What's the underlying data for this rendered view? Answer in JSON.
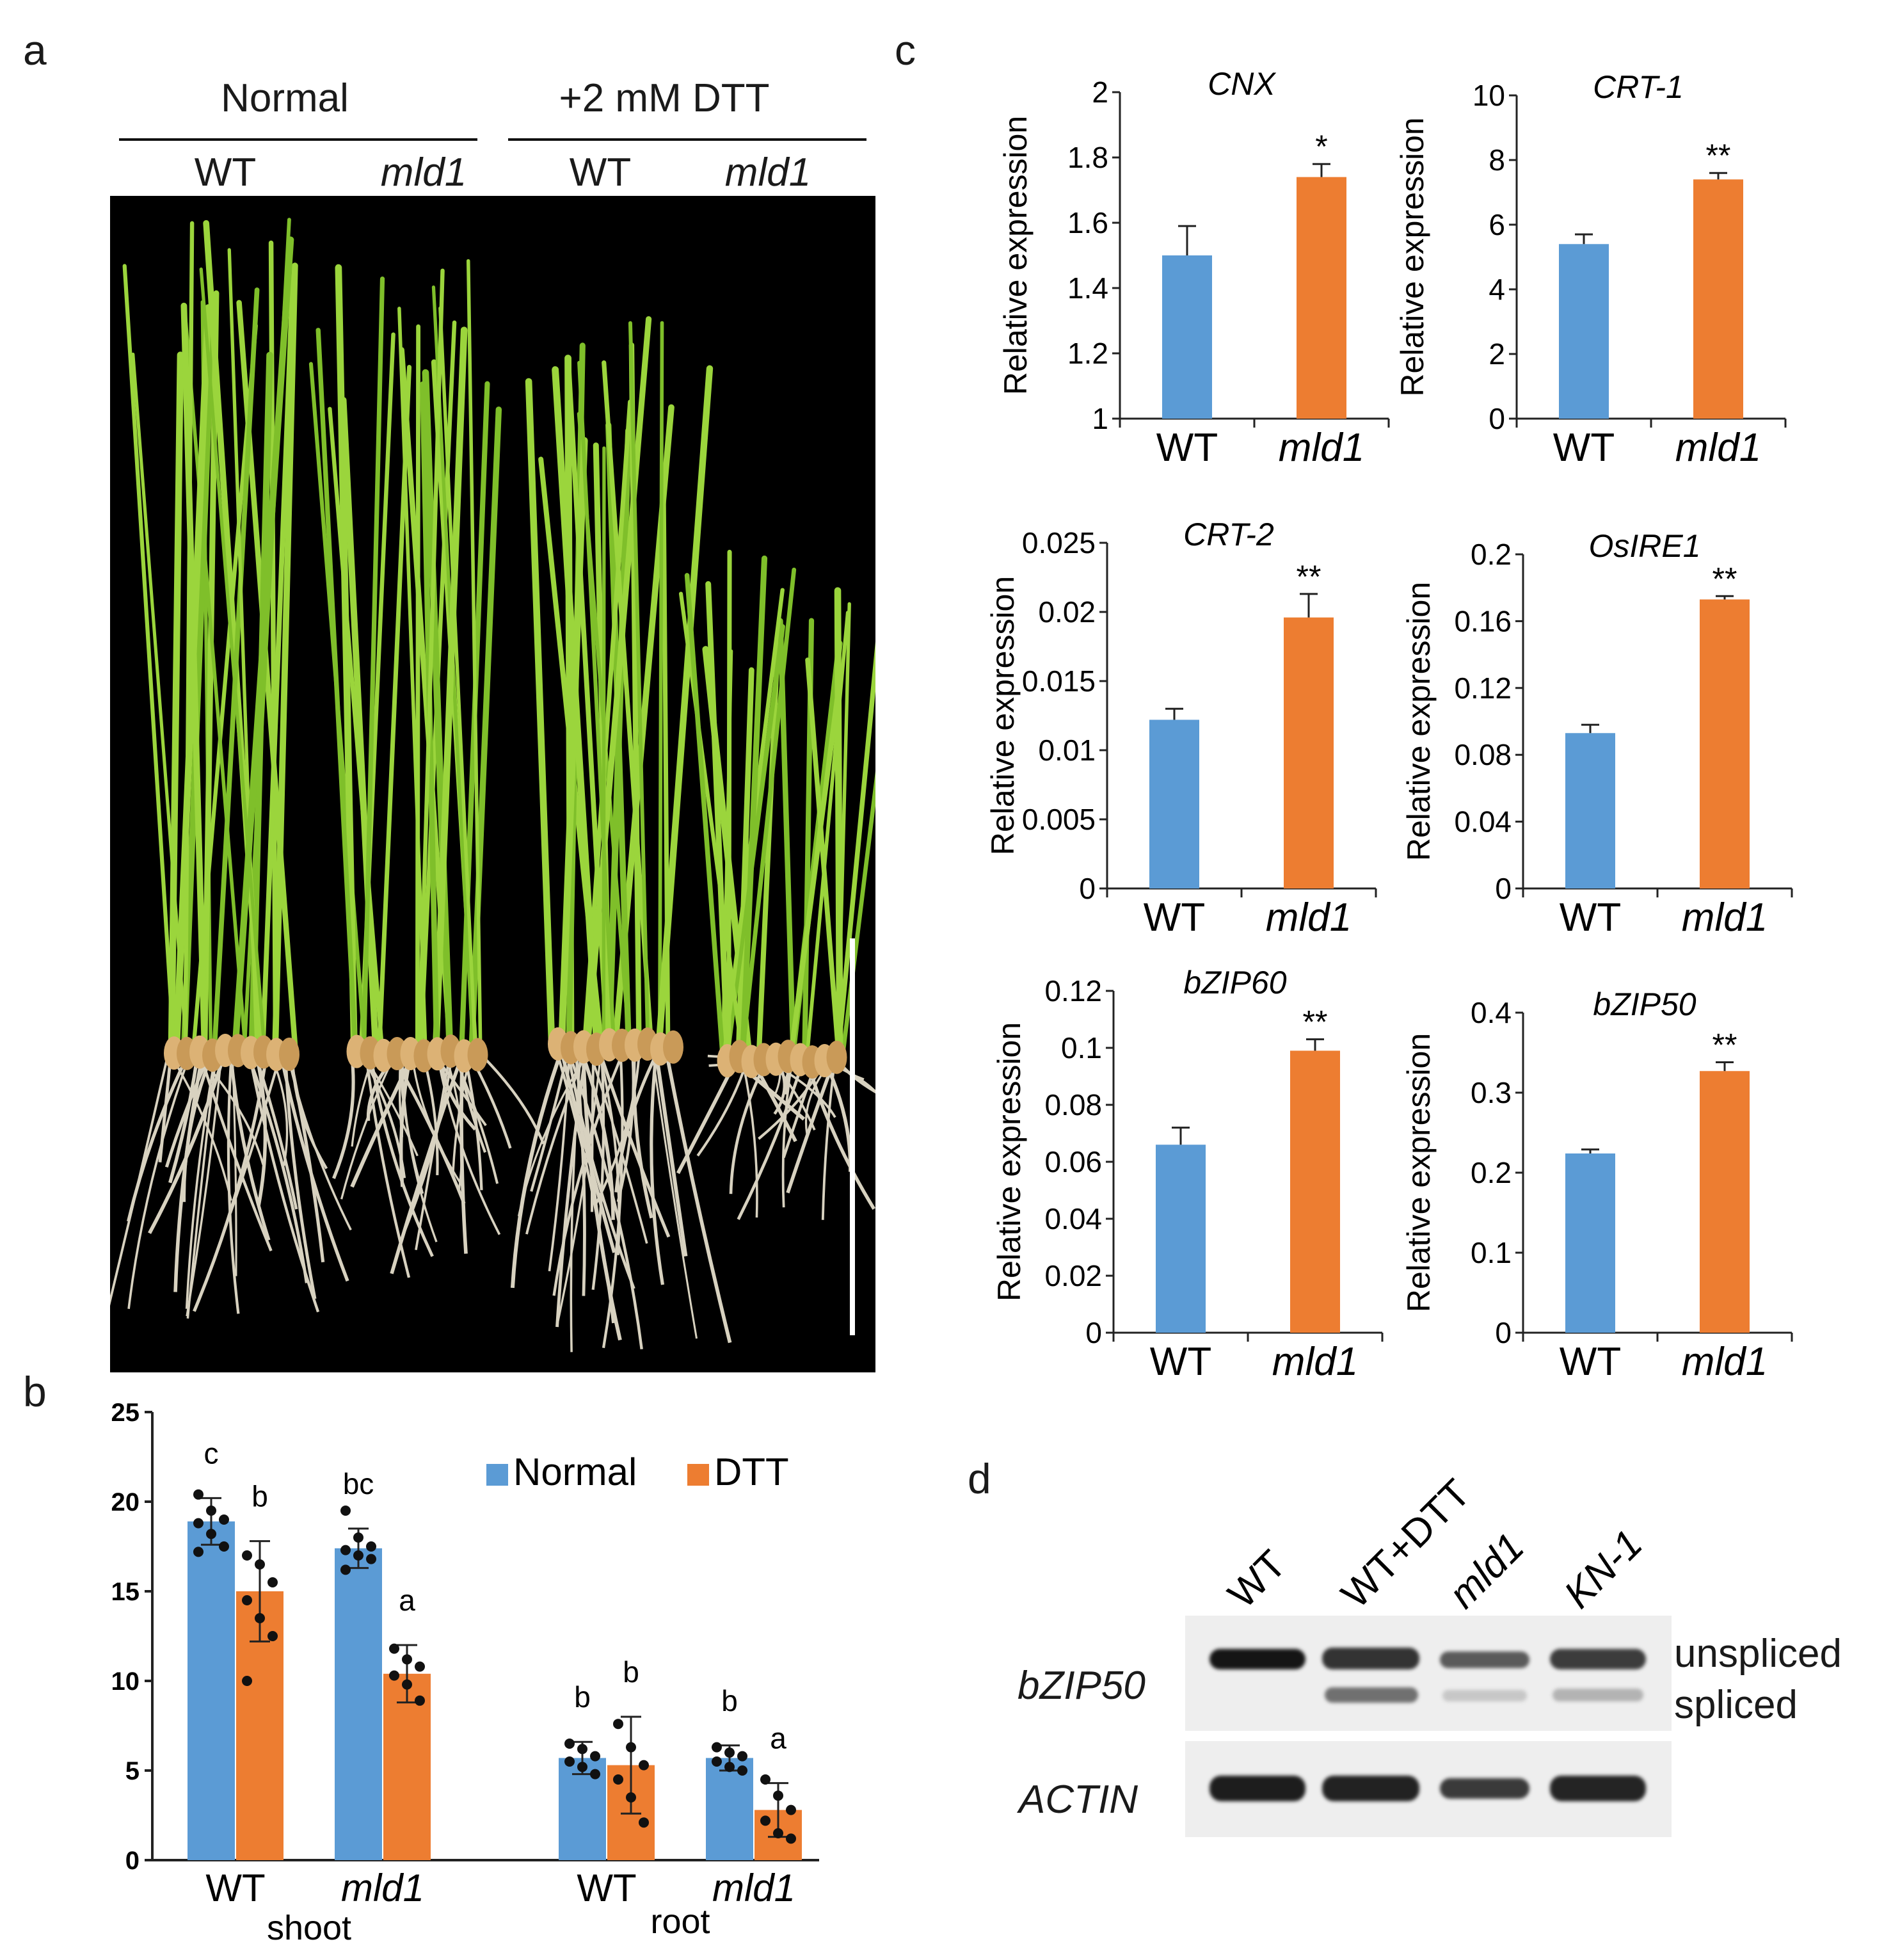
{
  "panel_a": {
    "letter": "a",
    "groups": [
      {
        "label": "Normal",
        "lines": [
          "WT",
          "mld1"
        ]
      },
      {
        "label": "+2 mM DTT",
        "lines": [
          "WT",
          "mld1"
        ]
      }
    ],
    "line_WT": "WT",
    "line_mld1": "mld1"
  },
  "panel_b": {
    "letter": "b",
    "legend": {
      "normal": "Normal",
      "dtt": "DTT"
    },
    "tissues": [
      "shoot",
      "root"
    ],
    "colors": {
      "normal": "#5b9bd5",
      "dtt": "#ed7d31"
    }
  },
  "panel_c": {
    "letter": "c",
    "ylabel": "Relative expression"
  },
  "panel_d": {
    "letter": "d",
    "lanes": [
      "WT",
      "WT+DTT",
      "mld1",
      "KN-1"
    ],
    "lane_italic": [
      false,
      false,
      true,
      true
    ],
    "rows": [
      "bZIP50",
      "ACTIN"
    ],
    "bands": [
      "unspliced",
      "spliced"
    ]
  },
  "chart_data": [
    {
      "id": "b",
      "type": "bar",
      "categories": [
        "WT",
        "mld1",
        "WT",
        "mld1"
      ],
      "groups": [
        "shoot",
        "shoot",
        "root",
        "root"
      ],
      "series": [
        {
          "name": "Normal",
          "values": [
            18.9,
            17.4,
            5.7,
            5.7
          ],
          "errors": [
            1.3,
            1.1,
            0.9,
            0.7
          ],
          "letters": [
            "c",
            "bc",
            "b",
            "b"
          ],
          "points": [
            [
              20.4,
              19.5,
              19.0,
              18.8,
              18.2,
              17.5,
              17.2
            ],
            [
              19.5,
              18.0,
              17.5,
              17.3,
              17.0,
              16.8,
              16.2
            ],
            [
              6.5,
              6.2,
              5.8,
              5.5,
              5.2,
              4.8
            ],
            [
              6.3,
              6.0,
              5.8,
              5.5,
              5.2,
              5.0
            ]
          ]
        },
        {
          "name": "DTT",
          "values": [
            15.0,
            10.4,
            5.3,
            2.8
          ],
          "errors": [
            2.8,
            1.6,
            2.7,
            1.5
          ],
          "letters": [
            "b",
            "a",
            "b",
            "a"
          ],
          "points": [
            [
              17.0,
              16.5,
              15.5,
              14.5,
              13.5,
              12.5,
              10.0
            ],
            [
              11.8,
              11.2,
              10.8,
              10.3,
              9.8,
              8.9
            ],
            [
              7.6,
              6.3,
              5.3,
              4.5,
              3.5,
              2.1
            ],
            [
              4.5,
              3.6,
              2.8,
              2.2,
              1.5,
              1.2
            ]
          ]
        }
      ],
      "ylim": [
        0,
        25
      ],
      "yticks": [
        0,
        5,
        10,
        15,
        20,
        25
      ]
    },
    {
      "id": "c-cnx",
      "type": "bar",
      "title": "CNX",
      "categories": [
        "WT",
        "mld1"
      ],
      "values": [
        1.5,
        1.74
      ],
      "errors": [
        0.09,
        0.04
      ],
      "sig": "*",
      "ylim": [
        1,
        2
      ],
      "yticks": [
        "1",
        "1.2",
        "1.4",
        "1.6",
        "1.8",
        "2"
      ],
      "ylabel": "Relative expression"
    },
    {
      "id": "c-crt1",
      "type": "bar",
      "title": "CRT-1",
      "categories": [
        "WT",
        "mld1"
      ],
      "values": [
        5.4,
        7.4
      ],
      "errors": [
        0.3,
        0.2
      ],
      "sig": "**",
      "ylim": [
        0,
        10
      ],
      "yticks": [
        "0",
        "2",
        "4",
        "6",
        "8",
        "10"
      ],
      "ylabel": "Relative expression"
    },
    {
      "id": "c-crt2",
      "type": "bar",
      "title": "CRT-2",
      "categories": [
        "WT",
        "mld1"
      ],
      "values": [
        0.0122,
        0.0196
      ],
      "errors": [
        0.0008,
        0.0017
      ],
      "sig": "**",
      "ylim": [
        0,
        0.025
      ],
      "yticks": [
        "0",
        "0.005",
        "0.01",
        "0.015",
        "0.02",
        "0.025"
      ],
      "ylabel": "Relative expression"
    },
    {
      "id": "c-osire1",
      "type": "bar",
      "title": "OsIRE1",
      "categories": [
        "WT",
        "mld1"
      ],
      "values": [
        0.093,
        0.173
      ],
      "errors": [
        0.005,
        0.002
      ],
      "sig": "**",
      "ylim": [
        0,
        0.2
      ],
      "yticks": [
        "0",
        "0.04",
        "0.08",
        "0.12",
        "0.16",
        "0.2"
      ],
      "ylabel": "Relative expression"
    },
    {
      "id": "c-bzip60",
      "type": "bar",
      "title": "bZIP60",
      "categories": [
        "WT",
        "mld1"
      ],
      "values": [
        0.066,
        0.099
      ],
      "errors": [
        0.006,
        0.004
      ],
      "sig": "**",
      "ylim": [
        0,
        0.12
      ],
      "yticks": [
        "0",
        "0.02",
        "0.04",
        "0.06",
        "0.08",
        "0.1",
        "0.12"
      ],
      "ylabel": "Relative expression"
    },
    {
      "id": "c-bzip50",
      "type": "bar",
      "title": "bZIP50",
      "categories": [
        "WT",
        "mld1"
      ],
      "values": [
        0.224,
        0.327
      ],
      "errors": [
        0.005,
        0.011
      ],
      "sig": "**",
      "ylim": [
        0,
        0.4
      ],
      "yticks": [
        "0",
        "0.1",
        "0.2",
        "0.3",
        "0.4"
      ],
      "ylabel": "Relative expression"
    }
  ]
}
